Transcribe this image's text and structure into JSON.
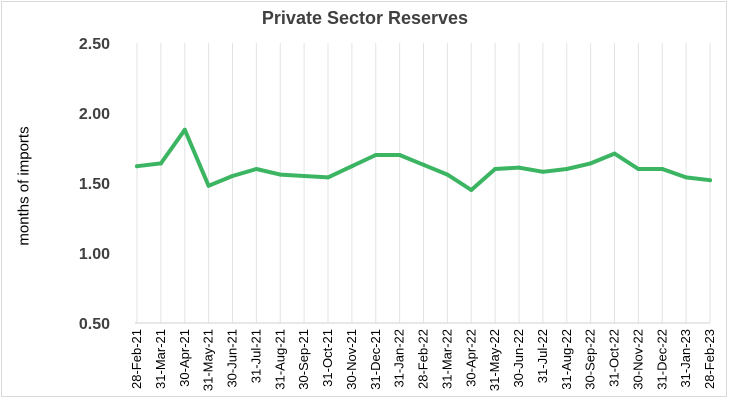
{
  "chart_data": {
    "type": "line",
    "title": "Private Sector Reserves",
    "xlabel": "",
    "ylabel": "months of imports",
    "ylim": [
      0.5,
      2.5
    ],
    "yticks": [
      "0.50",
      "1.00",
      "1.50",
      "2.00",
      "2.50"
    ],
    "grid": "vertical",
    "legend": "none",
    "line_color": "#3cb563",
    "categories": [
      "28-Feb-21",
      "31-Mar-21",
      "30-Apr-21",
      "31-May-21",
      "30-Jun-21",
      "31-Jul-21",
      "31-Aug-21",
      "30-Sep-21",
      "31-Oct-21",
      "30-Nov-21",
      "31-Dec-21",
      "31-Jan-22",
      "28-Feb-22",
      "31-Mar-22",
      "30-Apr-22",
      "31-May-22",
      "30-Jun-22",
      "31-Jul-22",
      "31-Aug-22",
      "30-Sep-22",
      "31-Oct-22",
      "30-Nov-22",
      "31-Dec-22",
      "31-Jan-23",
      "28-Feb-23"
    ],
    "series": [
      {
        "values": [
          1.62,
          1.64,
          1.88,
          1.48,
          1.55,
          1.6,
          1.56,
          1.55,
          1.54,
          1.62,
          1.7,
          1.7,
          1.63,
          1.56,
          1.45,
          1.6,
          1.61,
          1.58,
          1.6,
          1.64,
          1.71,
          1.6,
          1.6,
          1.54,
          1.52
        ]
      }
    ]
  }
}
